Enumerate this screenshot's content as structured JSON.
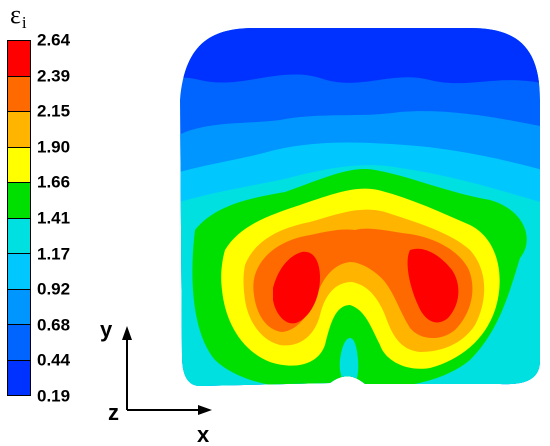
{
  "legend": {
    "title_symbol": "ε",
    "title_subscript": "i",
    "ticks": [
      "2.64",
      "2.39",
      "2.15",
      "1.90",
      "1.66",
      "1.41",
      "1.17",
      "0.92",
      "0.68",
      "0.44",
      "0.19"
    ],
    "colors_top_to_bottom": [
      "#ff0000",
      "#ff6a00",
      "#ffb400",
      "#ffff00",
      "#00e000",
      "#00e0e0",
      "#00c8ff",
      "#0096ff",
      "#0064ff",
      "#0032ff"
    ]
  },
  "axes": {
    "y_label": "y",
    "z_label": "z",
    "x_label": "x"
  }
}
